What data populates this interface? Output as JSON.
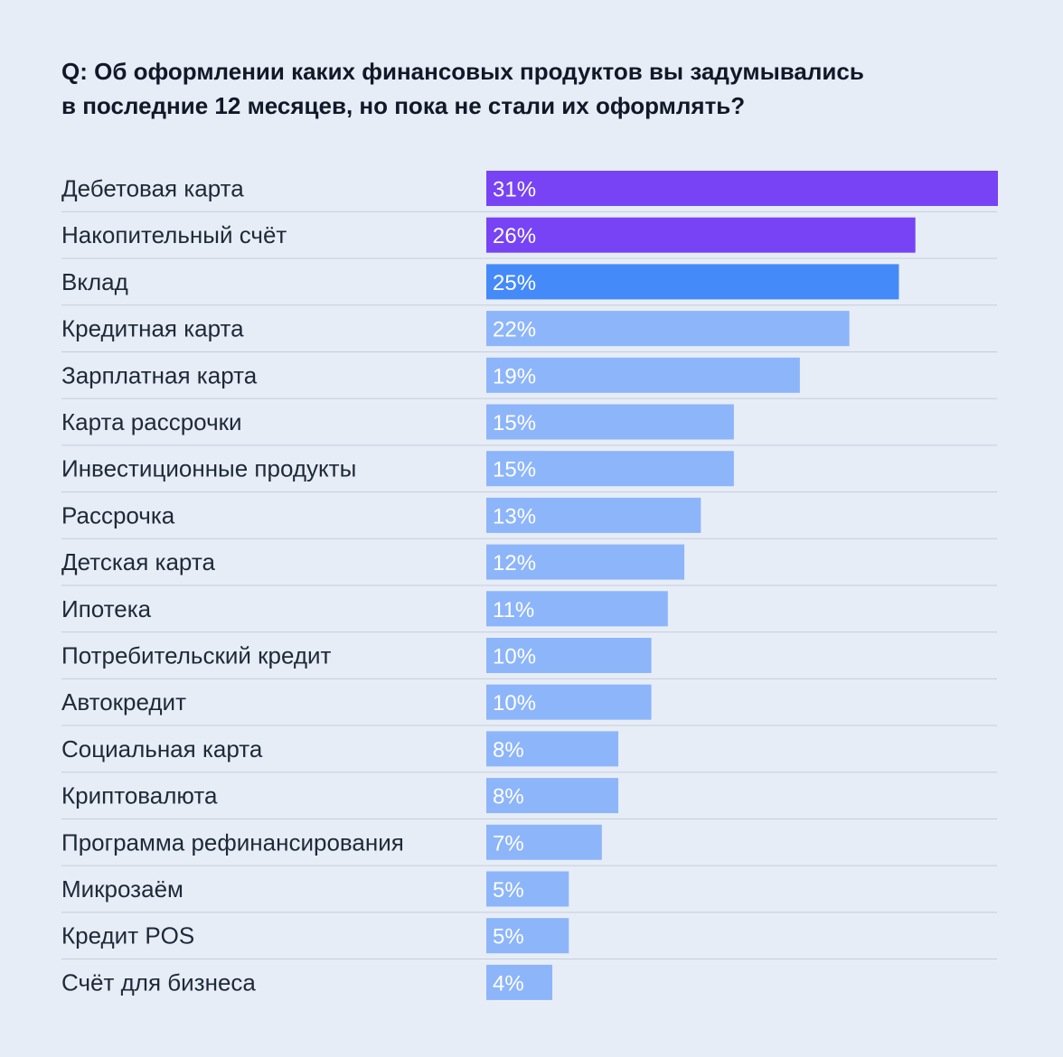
{
  "title": {
    "line1": "Q: Об оформлении каких финансовых продуктов вы задумывались",
    "line2": "в последние 12 месяцев, но пока не стали их оформлять?"
  },
  "colors": {
    "background": "#e7edf7",
    "purple": "#7743f5",
    "blue": "#448af9",
    "light_blue": "#8db5fa",
    "divider": "#c6cdd8",
    "text": "#1f2937"
  },
  "chart_data": {
    "type": "bar",
    "orientation": "horizontal",
    "title": "Q: Об оформлении каких финансовых продуктов вы задумывались в последние 12 месяцев, но пока не стали их оформлять?",
    "xlabel": "",
    "ylabel": "",
    "xlim": [
      0,
      31
    ],
    "grid": false,
    "unit": "%",
    "categories": [
      "Дебетовая карта",
      "Накопительный счёт",
      "Вклад",
      "Кредитная карта",
      "Зарплатная карта",
      "Карта рассрочки",
      "Инвестиционные продукты",
      "Рассрочка",
      "Детская карта",
      "Ипотека",
      "Потребительский кредит",
      "Автокредит",
      "Социальная карта",
      "Криптовалюта",
      "Программа рефинансирования",
      "Микрозаём",
      "Кредит POS",
      "Счёт для бизнеса"
    ],
    "values": [
      31,
      26,
      25,
      22,
      19,
      15,
      15,
      13,
      12,
      11,
      10,
      10,
      8,
      8,
      7,
      5,
      5,
      4
    ],
    "value_labels": [
      "31%",
      "26%",
      "25%",
      "22%",
      "19%",
      "15%",
      "15%",
      "13%",
      "12%",
      "11%",
      "10%",
      "10%",
      "8%",
      "8%",
      "7%",
      "5%",
      "5%",
      "4%"
    ],
    "bar_colors": [
      "purple",
      "purple",
      "blue",
      "light_blue",
      "light_blue",
      "light_blue",
      "light_blue",
      "light_blue",
      "light_blue",
      "light_blue",
      "light_blue",
      "light_blue",
      "light_blue",
      "light_blue",
      "light_blue",
      "light_blue",
      "light_blue",
      "light_blue"
    ]
  }
}
